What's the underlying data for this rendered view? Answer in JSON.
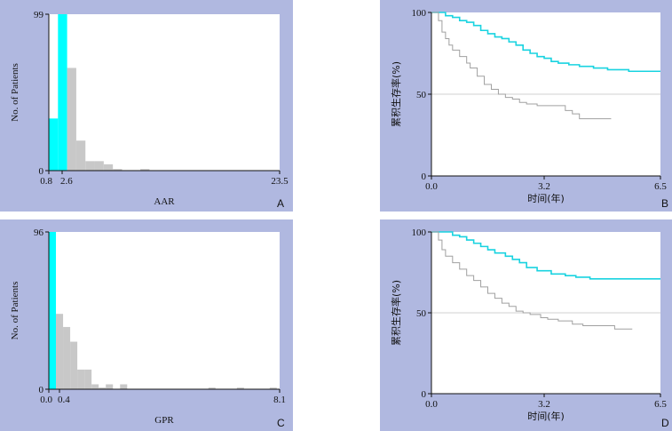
{
  "chart_data": [
    {
      "panel": "A",
      "type": "bar",
      "title": "",
      "xlabel": "AAR",
      "ylabel": "No. of Patients",
      "xlim": [
        0.8,
        23.5
      ],
      "ylim": [
        0,
        99
      ],
      "x_ticks": [
        "0.8",
        "2.6",
        "23.5"
      ],
      "y_ticks": [
        "0",
        "99"
      ],
      "bin_width": 0.9,
      "bins": [
        {
          "x": 0.8,
          "value": 33,
          "color": "#00ffff"
        },
        {
          "x": 1.7,
          "value": 99,
          "color": "#00ffff"
        },
        {
          "x": 2.6,
          "value": 65,
          "color": "#c8c8c8"
        },
        {
          "x": 3.5,
          "value": 19,
          "color": "#c8c8c8"
        },
        {
          "x": 4.4,
          "value": 6,
          "color": "#c8c8c8"
        },
        {
          "x": 5.3,
          "value": 6,
          "color": "#c8c8c8"
        },
        {
          "x": 6.2,
          "value": 4,
          "color": "#c8c8c8"
        },
        {
          "x": 7.1,
          "value": 1,
          "color": "#c8c8c8"
        },
        {
          "x": 9.8,
          "value": 1,
          "color": "#c8c8c8"
        }
      ]
    },
    {
      "panel": "B",
      "type": "line",
      "title": "",
      "xlabel": "时间(年)",
      "ylabel": "累积生存率(%)",
      "xlim": [
        0,
        6.5
      ],
      "ylim": [
        0,
        100
      ],
      "x_ticks": [
        "0.0",
        "3.2",
        "6.5"
      ],
      "y_ticks": [
        "0",
        "50",
        "100"
      ],
      "refline_y": 50,
      "series": [
        {
          "color": "#19d3e0",
          "points": [
            [
              0,
              100
            ],
            [
              0.3,
              100
            ],
            [
              0.4,
              98
            ],
            [
              0.6,
              97
            ],
            [
              0.8,
              95
            ],
            [
              1.0,
              94
            ],
            [
              1.2,
              92
            ],
            [
              1.4,
              89
            ],
            [
              1.6,
              87
            ],
            [
              1.8,
              85
            ],
            [
              2.0,
              84
            ],
            [
              2.2,
              82
            ],
            [
              2.4,
              80
            ],
            [
              2.6,
              77
            ],
            [
              2.8,
              75
            ],
            [
              3.0,
              73
            ],
            [
              3.2,
              72
            ],
            [
              3.4,
              70
            ],
            [
              3.6,
              69
            ],
            [
              3.9,
              68
            ],
            [
              4.2,
              67
            ],
            [
              4.6,
              66
            ],
            [
              5.0,
              65
            ],
            [
              5.6,
              64
            ],
            [
              6.5,
              64
            ]
          ]
        },
        {
          "color": "#a0a0a0",
          "points": [
            [
              0,
              100
            ],
            [
              0.2,
              95
            ],
            [
              0.3,
              88
            ],
            [
              0.4,
              84
            ],
            [
              0.5,
              80
            ],
            [
              0.6,
              77
            ],
            [
              0.8,
              73
            ],
            [
              1.0,
              69
            ],
            [
              1.1,
              66
            ],
            [
              1.3,
              61
            ],
            [
              1.5,
              56
            ],
            [
              1.7,
              53
            ],
            [
              1.9,
              50
            ],
            [
              2.1,
              48
            ],
            [
              2.3,
              47
            ],
            [
              2.5,
              45
            ],
            [
              2.7,
              44
            ],
            [
              3.0,
              43
            ],
            [
              3.5,
              43
            ],
            [
              3.8,
              40
            ],
            [
              4.0,
              38
            ],
            [
              4.2,
              35
            ],
            [
              4.6,
              35
            ],
            [
              5.1,
              35
            ]
          ]
        }
      ]
    },
    {
      "panel": "C",
      "type": "bar",
      "title": "",
      "xlabel": "GPR",
      "ylabel": "No. of Patients",
      "xlim": [
        0,
        8.1
      ],
      "ylim": [
        0,
        96
      ],
      "x_ticks": [
        "0.0",
        "0.4",
        "8.1"
      ],
      "y_ticks": [
        "0",
        "96"
      ],
      "bin_width": 0.25,
      "bins": [
        {
          "x": 0.0,
          "value": 96,
          "color": "#00ffff"
        },
        {
          "x": 0.25,
          "value": 46,
          "color": "#c8c8c8"
        },
        {
          "x": 0.5,
          "value": 38,
          "color": "#c8c8c8"
        },
        {
          "x": 0.75,
          "value": 29,
          "color": "#c8c8c8"
        },
        {
          "x": 1.0,
          "value": 12,
          "color": "#c8c8c8"
        },
        {
          "x": 1.25,
          "value": 12,
          "color": "#c8c8c8"
        },
        {
          "x": 1.5,
          "value": 3,
          "color": "#c8c8c8"
        },
        {
          "x": 1.75,
          "value": 1,
          "color": "#c8c8c8"
        },
        {
          "x": 2.0,
          "value": 3,
          "color": "#c8c8c8"
        },
        {
          "x": 2.5,
          "value": 3,
          "color": "#c8c8c8"
        },
        {
          "x": 5.6,
          "value": 1,
          "color": "#c8c8c8"
        },
        {
          "x": 6.6,
          "value": 1,
          "color": "#c8c8c8"
        },
        {
          "x": 7.75,
          "value": 1,
          "color": "#c8c8c8"
        }
      ]
    },
    {
      "panel": "D",
      "type": "line",
      "title": "",
      "xlabel": "时间(年)",
      "ylabel": "累积生存率(%)",
      "xlim": [
        0,
        6.5
      ],
      "ylim": [
        0,
        100
      ],
      "x_ticks": [
        "0.0",
        "3.2",
        "6.5"
      ],
      "y_ticks": [
        "0",
        "50",
        "100"
      ],
      "refline_y": 50,
      "series": [
        {
          "color": "#19d3e0",
          "points": [
            [
              0,
              100
            ],
            [
              0.5,
              100
            ],
            [
              0.6,
              98
            ],
            [
              0.8,
              97
            ],
            [
              1.0,
              95
            ],
            [
              1.2,
              93
            ],
            [
              1.4,
              91
            ],
            [
              1.6,
              89
            ],
            [
              1.8,
              87
            ],
            [
              2.1,
              85
            ],
            [
              2.3,
              83
            ],
            [
              2.5,
              81
            ],
            [
              2.7,
              78
            ],
            [
              3.0,
              76
            ],
            [
              3.4,
              74
            ],
            [
              3.8,
              73
            ],
            [
              4.1,
              72
            ],
            [
              4.5,
              71
            ],
            [
              5.2,
              71
            ],
            [
              6.5,
              71
            ]
          ]
        },
        {
          "color": "#a0a0a0",
          "points": [
            [
              0,
              100
            ],
            [
              0.2,
              95
            ],
            [
              0.3,
              89
            ],
            [
              0.4,
              85
            ],
            [
              0.6,
              81
            ],
            [
              0.8,
              77
            ],
            [
              1.0,
              73
            ],
            [
              1.2,
              70
            ],
            [
              1.4,
              66
            ],
            [
              1.6,
              62
            ],
            [
              1.8,
              59
            ],
            [
              2.0,
              56
            ],
            [
              2.2,
              54
            ],
            [
              2.4,
              51
            ],
            [
              2.6,
              50
            ],
            [
              2.8,
              49
            ],
            [
              3.1,
              47
            ],
            [
              3.3,
              46
            ],
            [
              3.6,
              45
            ],
            [
              4.0,
              43
            ],
            [
              4.3,
              42
            ],
            [
              4.6,
              42
            ],
            [
              5.2,
              40
            ],
            [
              5.7,
              40
            ]
          ]
        }
      ]
    }
  ],
  "panel_letters": [
    "A",
    "B",
    "C",
    "D"
  ]
}
